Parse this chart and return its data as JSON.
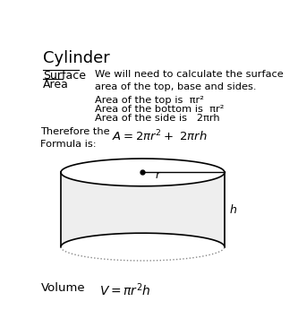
{
  "title": "Cylinder",
  "background_color": "#ffffff",
  "text_color": "#000000",
  "surface_label_line1": "Surface",
  "surface_label_line2": "Area",
  "text1": "We will need to calculate the surface\narea of the top, base and sides.",
  "text2a": "Area of the top is  πr²",
  "text2b": "Area of the bottom is  πr²",
  "text2c": "Area of the side is   2πrh",
  "formula_label": "Therefore the\nFormula is:",
  "volume_label": "Volume",
  "cylinder_color": "#000000",
  "cylinder_fill": "#eeeeee",
  "dotted_color": "#888888"
}
